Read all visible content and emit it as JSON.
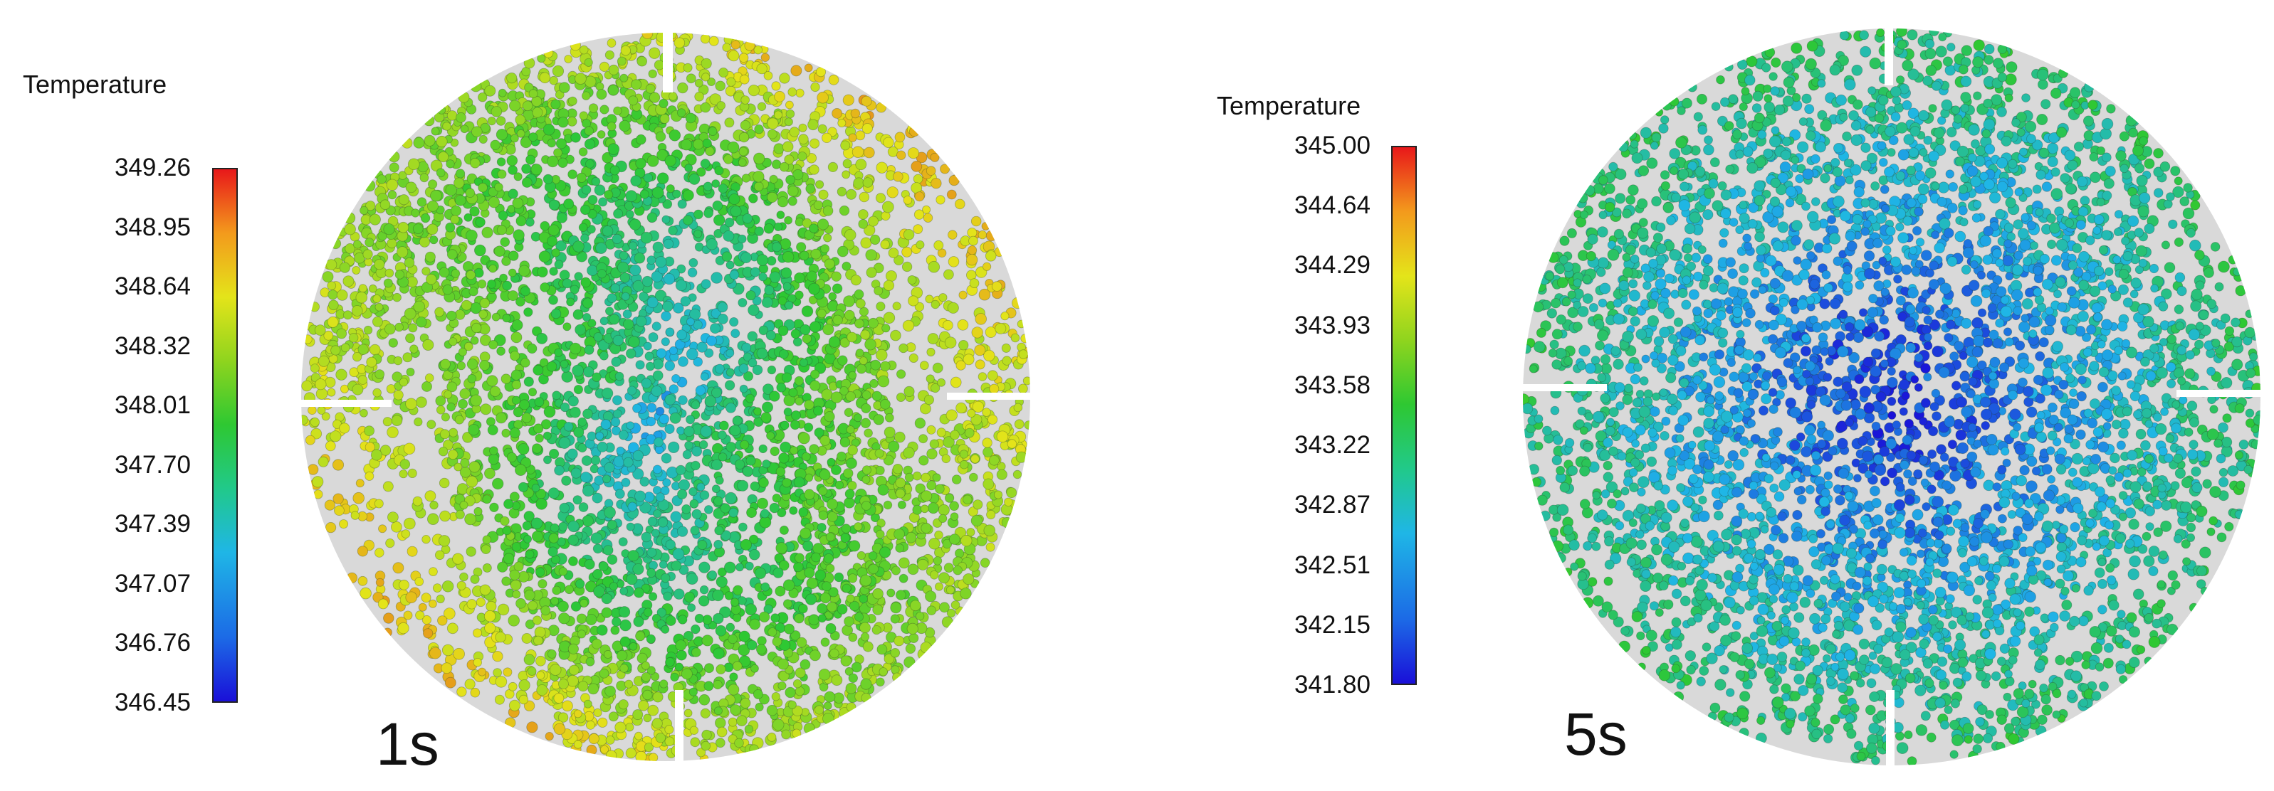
{
  "panels": [
    {
      "time_label": "1s",
      "colorbar": {
        "title": "Temperature",
        "ticks": [
          "349.26",
          "348.95",
          "348.64",
          "348.32",
          "348.01",
          "347.70",
          "347.39",
          "347.07",
          "346.76",
          "346.45"
        ]
      }
    },
    {
      "time_label": "5s",
      "colorbar": {
        "title": "Temperature",
        "ticks": [
          "345.00",
          "344.64",
          "344.29",
          "343.93",
          "343.58",
          "343.22",
          "342.87",
          "342.51",
          "342.15",
          "341.80"
        ]
      }
    }
  ],
  "colors": {
    "vessel": "#d9d9d9",
    "baffle_gap": "#ffffff",
    "hot": "#e8181a",
    "warm": "#e4e41a",
    "mid": "#2ec832",
    "cool": "#1fb6e6",
    "cold": "#1a10d8"
  }
}
